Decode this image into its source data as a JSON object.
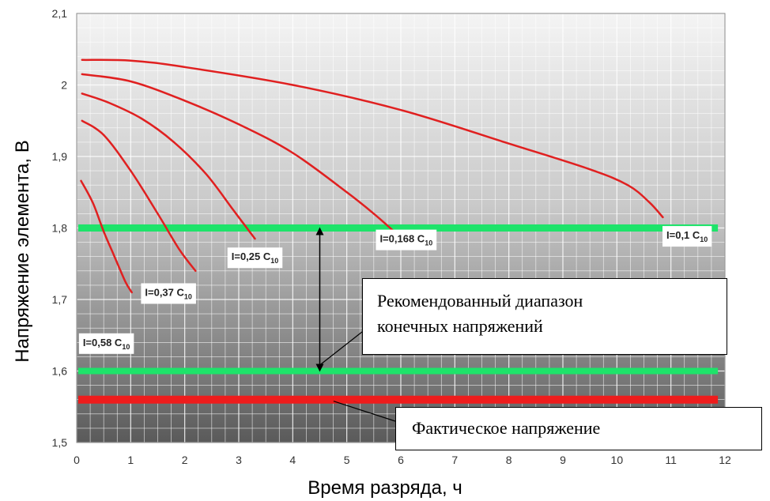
{
  "chart_data": {
    "type": "line",
    "xlabel": "Время разряда, ч",
    "ylabel": "Напряжение элемента, В",
    "xlim": [
      0,
      12
    ],
    "ylim": [
      1.5,
      2.1
    ],
    "xticks": [
      "0",
      "1",
      "2",
      "3",
      "4",
      "5",
      "6",
      "7",
      "8",
      "9",
      "10",
      "11",
      "12"
    ],
    "yticks": [
      "1,5",
      "1,6",
      "1,7",
      "1,8",
      "1,9",
      "2",
      "2,1"
    ],
    "grid": true,
    "series": [
      {
        "name": "I=0,58 C10",
        "label_main": "I=0,58 C",
        "label_sub": "10",
        "color": "#e02020",
        "x": [
          0.08,
          0.3,
          0.5,
          0.7,
          0.9,
          1.02
        ],
        "y": [
          1.866,
          1.835,
          1.795,
          1.76,
          1.725,
          1.71
        ]
      },
      {
        "name": "I=0,37 C10",
        "label_main": "I=0,37 C",
        "label_sub": "10",
        "color": "#e02020",
        "x": [
          0.1,
          0.5,
          1.0,
          1.5,
          1.9,
          2.2
        ],
        "y": [
          1.95,
          1.93,
          1.88,
          1.82,
          1.77,
          1.74
        ]
      },
      {
        "name": "I=0,25 C10",
        "label_main": "I=0,25 C",
        "label_sub": "10",
        "color": "#e02020",
        "x": [
          0.1,
          0.6,
          1.2,
          1.8,
          2.4,
          2.9,
          3.3
        ],
        "y": [
          1.988,
          1.975,
          1.953,
          1.92,
          1.875,
          1.825,
          1.785
        ]
      },
      {
        "name": "I=0,168 C10",
        "label_main": "I=0,168 C",
        "label_sub": "10",
        "color": "#e02020",
        "x": [
          0.1,
          1.0,
          2.0,
          3.0,
          4.0,
          5.0,
          5.5,
          5.95
        ],
        "y": [
          2.015,
          2.005,
          1.978,
          1.945,
          1.905,
          1.85,
          1.82,
          1.79
        ]
      },
      {
        "name": "I=0,1 C10",
        "label_main": "I=0,1 C",
        "label_sub": "10",
        "color": "#e02020",
        "x": [
          0.1,
          1.0,
          2.0,
          4.0,
          6.0,
          8.0,
          9.5,
          10.2,
          10.6,
          10.85
        ],
        "y": [
          2.035,
          2.034,
          2.025,
          2.0,
          1.965,
          1.918,
          1.882,
          1.86,
          1.836,
          1.815
        ]
      }
    ],
    "reference_lines": [
      {
        "y": 1.8,
        "color": "#1ee36a"
      },
      {
        "y": 1.6,
        "color": "#1ee36a"
      },
      {
        "y": 1.56,
        "color": "#ee1c1c"
      }
    ],
    "annotations": {
      "range_arrow": {
        "x": 4.5,
        "y_from": 1.8,
        "y_to": 1.6
      },
      "range_text": [
        "Рекомендованный диапазон",
        "конечных напряжений"
      ],
      "actual_text": "Фактическое напряжение"
    }
  }
}
